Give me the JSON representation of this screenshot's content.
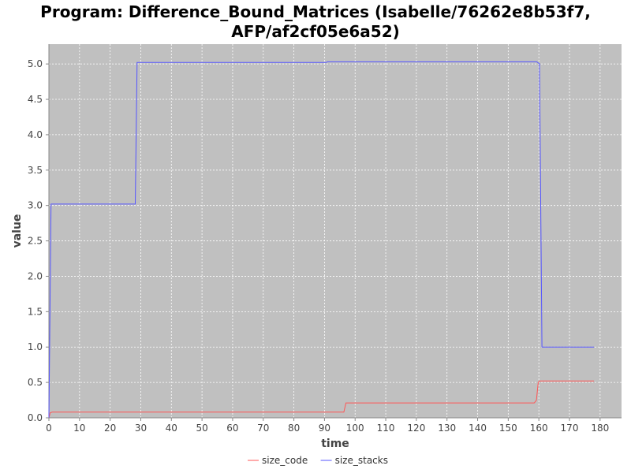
{
  "chart_data": {
    "type": "line",
    "title_lines": [
      "Program: Difference_Bound_Matrices (Isabelle/76262e8b53f7,",
      "AFP/af2cf05e6a52)"
    ],
    "xlabel": "time",
    "ylabel": "value",
    "xlim": [
      0,
      187
    ],
    "ylim": [
      0,
      5.28
    ],
    "xticks": [
      0,
      10,
      20,
      30,
      40,
      50,
      60,
      70,
      80,
      90,
      100,
      110,
      120,
      130,
      140,
      150,
      160,
      170,
      180
    ],
    "yticks": [
      0.0,
      0.5,
      1.0,
      1.5,
      2.0,
      2.5,
      3.0,
      3.5,
      4.0,
      4.5,
      5.0
    ],
    "ytick_labels": [
      "0.0",
      "0.5",
      "1.0",
      "1.5",
      "2.0",
      "2.5",
      "3.0",
      "3.5",
      "4.0",
      "4.5",
      "5.0"
    ],
    "grid": true,
    "plot_background": "#c0c0c0",
    "legend_position": "bottom-center",
    "series": [
      {
        "name": "size_code",
        "color": "#ff5555",
        "points": [
          [
            0,
            0.0
          ],
          [
            0.4,
            0.07
          ],
          [
            1,
            0.08
          ],
          [
            50,
            0.08
          ],
          [
            96.3,
            0.08
          ],
          [
            97,
            0.21
          ],
          [
            130,
            0.21
          ],
          [
            158.5,
            0.21
          ],
          [
            159.2,
            0.25
          ],
          [
            159.8,
            0.5
          ],
          [
            160.2,
            0.52
          ],
          [
            170,
            0.52
          ],
          [
            178,
            0.52
          ]
        ]
      },
      {
        "name": "size_stacks",
        "color": "#5555ff",
        "points": [
          [
            0,
            0.0
          ],
          [
            0.7,
            3.02
          ],
          [
            10,
            3.02
          ],
          [
            28.2,
            3.02
          ],
          [
            28.8,
            5.02
          ],
          [
            60,
            5.02
          ],
          [
            90.5,
            5.02
          ],
          [
            91,
            5.03
          ],
          [
            130,
            5.03
          ],
          [
            159.3,
            5.03
          ],
          [
            160.2,
            5.0
          ],
          [
            161,
            1.0
          ],
          [
            170,
            1.0
          ],
          [
            178,
            1.0
          ]
        ]
      }
    ]
  }
}
